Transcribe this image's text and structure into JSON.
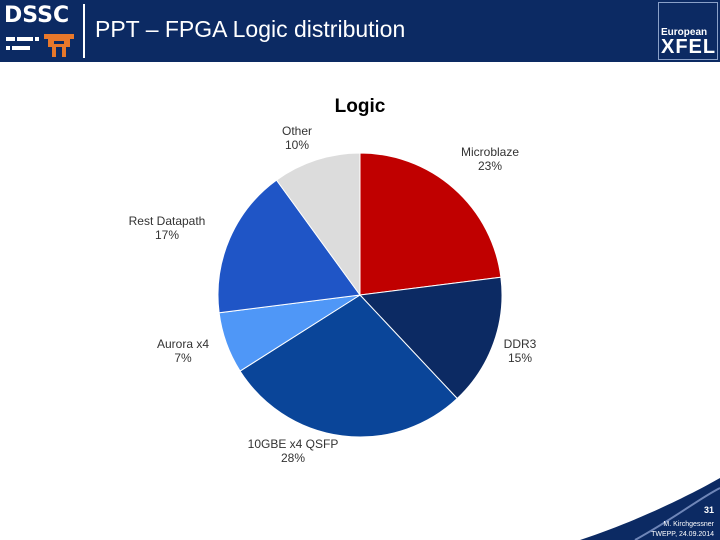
{
  "header": {
    "logo_left_text": "DSSC",
    "title": "PPT – FPGA Logic distribution",
    "logo_right_small": "European",
    "logo_right_big": "XFEL"
  },
  "chart_data": {
    "type": "pie",
    "title": "Logic",
    "start_angle_deg": 0,
    "direction": "clockwise",
    "slices": [
      {
        "name": "Microblaze",
        "value": 23,
        "label": "23%",
        "color": "#c00000"
      },
      {
        "name": "DDR3",
        "value": 15,
        "label": "15%",
        "color": "#0c2a63"
      },
      {
        "name": "10GBE x4 QSFP",
        "value": 28,
        "label": "28%",
        "color": "#0a4599"
      },
      {
        "name": "Aurora x4",
        "value": 7,
        "label": "7%",
        "color": "#4f97f7"
      },
      {
        "name": "Rest Datapath",
        "value": 17,
        "label": "17%",
        "color": "#1f55c6"
      },
      {
        "name": "Other",
        "value": 10,
        "label": "10%",
        "color": "#dcdcdc"
      }
    ]
  },
  "footer": {
    "page": "31",
    "author": "M. Kirchgessner",
    "event": "TWEPP, 24.09.2014"
  },
  "colors": {
    "header_bg": "#0c2a63",
    "footer_swoosh": "#0c2a63"
  }
}
